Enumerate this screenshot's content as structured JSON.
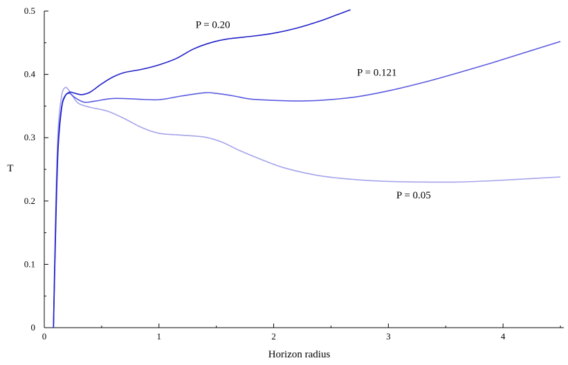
{
  "chart_data": {
    "type": "line",
    "title": "",
    "xlabel": "Horizon radius",
    "ylabel": "T",
    "xlim": [
      0,
      4.5
    ],
    "ylim": [
      0,
      0.5
    ],
    "grid": false,
    "legend": "none",
    "x_ticks": [
      "0",
      "1",
      "2",
      "3",
      "4"
    ],
    "y_ticks": [
      "0",
      "0.1",
      "0.2",
      "0.3",
      "0.4",
      "0.5"
    ],
    "series": [
      {
        "name": "P = 0.20",
        "color": "#1f1fc8",
        "x": [
          0.08,
          0.1,
          0.12,
          0.15,
          0.18,
          0.22,
          0.27,
          0.33,
          0.4,
          0.5,
          0.6,
          0.7,
          0.85,
          1.0,
          1.15,
          1.3,
          1.45,
          1.6,
          1.8,
          2.0,
          2.2,
          2.4,
          2.55,
          2.67
        ],
        "y": [
          0.0,
          0.16,
          0.28,
          0.345,
          0.365,
          0.372,
          0.37,
          0.368,
          0.372,
          0.385,
          0.396,
          0.403,
          0.408,
          0.415,
          0.425,
          0.44,
          0.45,
          0.456,
          0.46,
          0.465,
          0.473,
          0.484,
          0.494,
          0.502
        ]
      },
      {
        "name": "P = 0.121",
        "color": "#5a5ae0",
        "x": [
          0.08,
          0.1,
          0.12,
          0.15,
          0.18,
          0.22,
          0.27,
          0.35,
          0.45,
          0.6,
          0.8,
          1.0,
          1.2,
          1.4,
          1.5,
          1.65,
          1.8,
          2.0,
          2.2,
          2.4,
          2.7,
          3.0,
          3.3,
          3.6,
          3.9,
          4.2,
          4.5
        ],
        "y": [
          0.0,
          0.17,
          0.29,
          0.348,
          0.366,
          0.37,
          0.363,
          0.356,
          0.358,
          0.362,
          0.361,
          0.36,
          0.366,
          0.371,
          0.37,
          0.366,
          0.361,
          0.359,
          0.358,
          0.359,
          0.364,
          0.374,
          0.387,
          0.402,
          0.418,
          0.435,
          0.452
        ]
      },
      {
        "name": "P = 0.05",
        "color": "#a4a4ec",
        "x": [
          0.08,
          0.1,
          0.12,
          0.15,
          0.18,
          0.21,
          0.25,
          0.3,
          0.4,
          0.55,
          0.7,
          0.85,
          1.0,
          1.2,
          1.4,
          1.55,
          1.7,
          1.9,
          2.1,
          2.4,
          2.7,
          3.0,
          3.3,
          3.6,
          3.9,
          4.2,
          4.5
        ],
        "y": [
          0.0,
          0.19,
          0.31,
          0.365,
          0.379,
          0.376,
          0.365,
          0.354,
          0.348,
          0.342,
          0.33,
          0.316,
          0.307,
          0.304,
          0.301,
          0.293,
          0.28,
          0.265,
          0.252,
          0.24,
          0.234,
          0.231,
          0.23,
          0.23,
          0.232,
          0.235,
          0.238
        ]
      }
    ],
    "annotations": [
      {
        "text": "P = 0.20",
        "x": 1.47,
        "y": 0.473
      },
      {
        "text": "P = 0.121",
        "x": 2.9,
        "y": 0.398
      },
      {
        "text": "P = 0.05",
        "x": 3.22,
        "y": 0.204
      }
    ]
  }
}
